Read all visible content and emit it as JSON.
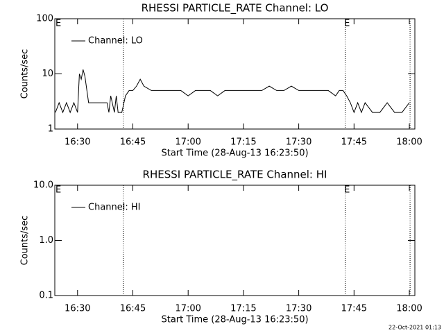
{
  "chart_data": [
    {
      "type": "line",
      "title": "RHESSI PARTICLE_RATE Channel: LO",
      "xlabel": "Start Time (28-Aug-13 16:23:50)",
      "ylabel": "Counts/sec",
      "x": [
        24,
        25,
        26,
        27,
        28,
        29,
        30,
        30.5,
        31,
        31.5,
        32,
        33,
        34,
        35,
        36,
        37,
        38,
        38.5,
        39,
        40,
        40.5,
        41,
        42,
        43,
        44,
        45,
        46,
        47,
        48,
        50,
        52,
        54,
        56,
        58,
        60,
        62,
        64,
        66,
        68,
        70,
        72,
        74,
        76,
        78,
        80,
        82,
        84,
        86,
        88,
        90,
        92,
        94,
        96,
        98,
        100,
        101,
        102,
        103,
        104,
        105,
        106,
        107,
        108,
        110,
        112,
        114,
        116,
        118,
        120
      ],
      "series": [
        {
          "name": "Channel: LO",
          "color": "#000000",
          "values": [
            2,
            3,
            2,
            3,
            2,
            3,
            2,
            10,
            8,
            12,
            9,
            3,
            3,
            3,
            3,
            3,
            3,
            2,
            4,
            2,
            4,
            2,
            2,
            4,
            5,
            5,
            6,
            8,
            6,
            5,
            5,
            5,
            5,
            5,
            4,
            5,
            5,
            5,
            4,
            5,
            5,
            5,
            5,
            5,
            5,
            6,
            5,
            5,
            6,
            5,
            5,
            5,
            5,
            5,
            4,
            5,
            5,
            4,
            3,
            2,
            3,
            2,
            3,
            2,
            2,
            3,
            2,
            2,
            3
          ]
        }
      ],
      "xlim": [
        23.83,
        121.5
      ],
      "xticks": [
        {
          "value": 30,
          "label": "16:30"
        },
        {
          "value": 45,
          "label": "16:45"
        },
        {
          "value": 60,
          "label": "17:00"
        },
        {
          "value": 75,
          "label": "17:15"
        },
        {
          "value": 90,
          "label": "17:30"
        },
        {
          "value": 105,
          "label": "17:45"
        },
        {
          "value": 120,
          "label": "18:00"
        }
      ],
      "ylim": [
        1,
        100
      ],
      "yticks": [
        1,
        10,
        100
      ],
      "log_y": true,
      "legend": "upper left",
      "vlines": [
        42.4,
        102.6,
        120.2
      ],
      "markers": [
        {
          "x": 24.8,
          "label": "E"
        },
        {
          "x": 103.1,
          "label": "E"
        }
      ]
    },
    {
      "type": "line",
      "title": "RHESSI PARTICLE_RATE Channel: HI",
      "xlabel": "Start Time (28-Aug-13 16:23:50)",
      "ylabel": "Counts/sec",
      "x": [],
      "series": [
        {
          "name": "Channel: HI",
          "color": "#000000",
          "values": []
        }
      ],
      "xlim": [
        23.83,
        121.5
      ],
      "xticks": [
        {
          "value": 30,
          "label": "16:30"
        },
        {
          "value": 45,
          "label": "16:45"
        },
        {
          "value": 60,
          "label": "17:00"
        },
        {
          "value": 75,
          "label": "17:15"
        },
        {
          "value": 90,
          "label": "17:30"
        },
        {
          "value": 105,
          "label": "17:45"
        },
        {
          "value": 120,
          "label": "18:00"
        }
      ],
      "ylim": [
        0.1,
        10
      ],
      "yticks": [
        0.1,
        {
          "value": 1,
          "label": "1.0"
        },
        {
          "value": 10,
          "label": "10.0"
        }
      ],
      "log_y": true,
      "legend": "upper left",
      "vlines": [
        42.4,
        102.6,
        120.2
      ],
      "markers": [
        {
          "x": 24.8,
          "label": "E"
        },
        {
          "x": 103.1,
          "label": "E"
        }
      ]
    }
  ],
  "footer": "22-Oct-2021 01:13"
}
